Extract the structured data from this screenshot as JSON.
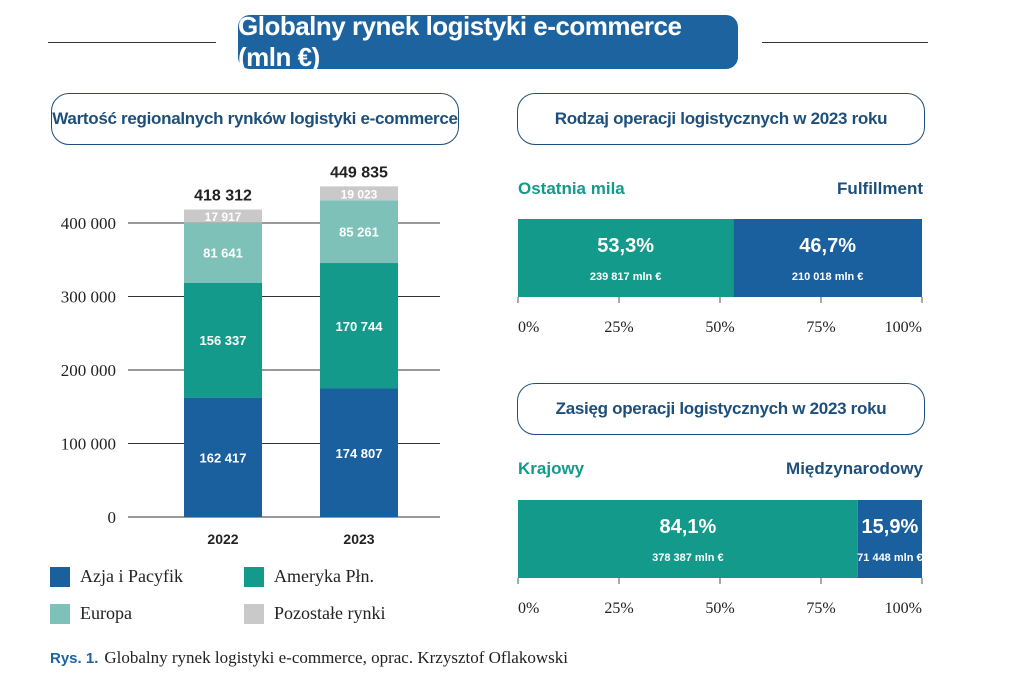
{
  "main_title": "Globalny rynek logistyki e-commerce (mln €)",
  "colors": {
    "asia": "#1a5f9e",
    "america": "#139a8a",
    "europe": "#7ec1b8",
    "other": "#c9c9c9",
    "title_bg": "#1d63a0",
    "fulfillment": "#1a5f9e",
    "last_mile": "#139a8a"
  },
  "caption": {
    "label": "Rys. 1.",
    "text": "Globalny rynek logistyki e-commerce, oprac. Krzysztof Oflakowski"
  },
  "left_panel": {
    "title": "Wartość regionalnych rynków logistyki e-commerce"
  },
  "ops_panel": {
    "title": "Rodzaj operacji logistycznych w 2023 roku",
    "left_label": "Ostatnia mila",
    "right_label": "Fulfillment"
  },
  "scope_panel": {
    "title": "Zasięg operacji logistycznych w 2023 roku",
    "left_label": "Krajowy",
    "right_label": "Międzynarodowy"
  },
  "legend": [
    {
      "name": "Azja i Pacyfik",
      "color_key": "asia"
    },
    {
      "name": "Ameryka Płn.",
      "color_key": "america"
    },
    {
      "name": "Europa",
      "color_key": "europe"
    },
    {
      "name": "Pozostałe rynki",
      "color_key": "other"
    }
  ],
  "chart_data": [
    {
      "type": "bar",
      "stacked": true,
      "title": "Wartość regionalnych rynków logistyki e-commerce",
      "categories": [
        "2022",
        "2023"
      ],
      "series": [
        {
          "name": "Azja i Pacyfik",
          "values": [
            162417,
            174807
          ],
          "labels": [
            "162 417",
            "174 807"
          ]
        },
        {
          "name": "Ameryka Płn.",
          "values": [
            156337,
            170744
          ],
          "labels": [
            "156 337",
            "170 744"
          ]
        },
        {
          "name": "Europa",
          "values": [
            81641,
            85261
          ],
          "labels": [
            "81 641",
            "85 261"
          ]
        },
        {
          "name": "Pozostałe rynki",
          "values": [
            17917,
            19023
          ],
          "labels": [
            "17 917",
            "19 023"
          ]
        }
      ],
      "totals": [
        418312,
        449835
      ],
      "total_labels": [
        "418 312",
        "449 835"
      ],
      "yticks": [
        0,
        100000,
        200000,
        300000,
        400000
      ],
      "ytick_labels": [
        "0",
        "100 000",
        "200 000",
        "300 000",
        "400 000"
      ],
      "ylim": [
        0,
        400000
      ],
      "grid": true
    },
    {
      "type": "bar",
      "orientation": "horizontal",
      "stacked": true,
      "title": "Rodzaj operacji logistycznych w 2023 roku",
      "series": [
        {
          "name": "Ostatnia mila",
          "percent": 53.3,
          "percent_label": "53,3%",
          "value_label": "239 817 mln €"
        },
        {
          "name": "Fulfillment",
          "percent": 46.7,
          "percent_label": "46,7%",
          "value_label": "210 018 mln €"
        }
      ],
      "xticks": [
        "0%",
        "25%",
        "50%",
        "75%",
        "100%"
      ],
      "xlim": [
        0,
        100
      ]
    },
    {
      "type": "bar",
      "orientation": "horizontal",
      "stacked": true,
      "title": "Zasięg operacji logistycznych w 2023 roku",
      "series": [
        {
          "name": "Krajowy",
          "percent": 84.1,
          "percent_label": "84,1%",
          "value_label": "378 387 mln €"
        },
        {
          "name": "Międzynarodowy",
          "percent": 15.9,
          "percent_label": "15,9%",
          "value_label": "71 448 mln €"
        }
      ],
      "xticks": [
        "0%",
        "25%",
        "50%",
        "75%",
        "100%"
      ],
      "xlim": [
        0,
        100
      ]
    }
  ]
}
